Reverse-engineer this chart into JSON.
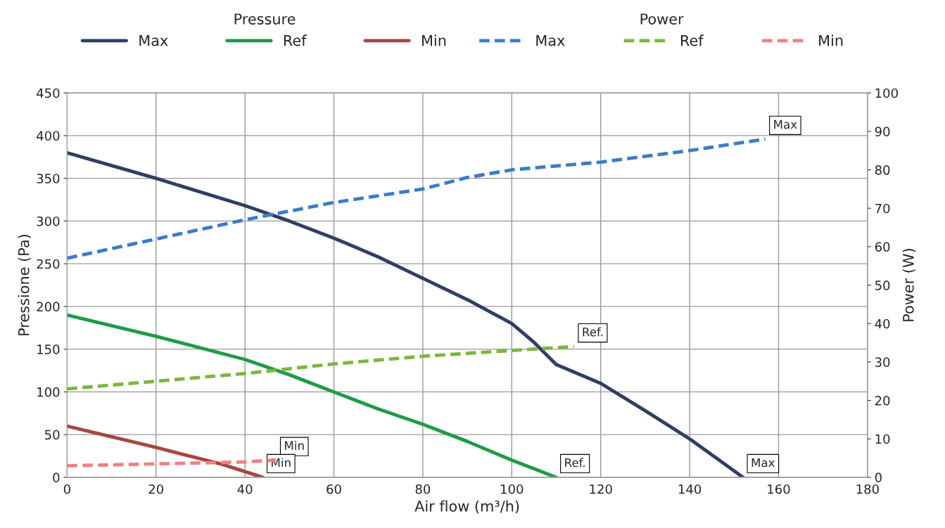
{
  "chart_data": {
    "type": "line",
    "xlabel": "Air flow (m³/h)",
    "ylabel": "Pressione (Pa)",
    "y2label": "Power (W)",
    "legend_title": [
      "Pressure",
      "Power"
    ],
    "legend": "top",
    "grid": true,
    "marker": "none",
    "xlim": [
      0,
      180
    ],
    "xticks": [
      0,
      20,
      40,
      60,
      80,
      100,
      120,
      140,
      160,
      180
    ],
    "ylim": [
      0,
      450
    ],
    "yticks": [
      0,
      50,
      100,
      150,
      200,
      250,
      300,
      350,
      400,
      450
    ],
    "y2lim": [
      0,
      100
    ],
    "y2ticks": [
      0,
      10,
      20,
      30,
      40,
      50,
      60,
      70,
      80,
      90,
      100
    ],
    "series": [
      {
        "name": "Max",
        "color": "#2e3f63",
        "line_style": "solid",
        "x": [
          0,
          20,
          40,
          50,
          60,
          70,
          80,
          90,
          100,
          105,
          110,
          120,
          130,
          140,
          152
        ],
        "values": [
          380,
          350,
          318,
          300,
          280,
          258,
          233,
          208,
          180,
          158,
          132,
          110,
          78,
          45,
          0
        ]
      },
      {
        "name": "Ref",
        "color": "#1f9a48",
        "line_style": "solid",
        "x": [
          0,
          20,
          40,
          50,
          60,
          70,
          80,
          90,
          100,
          110
        ],
        "values": [
          190,
          165,
          138,
          120,
          100,
          80,
          62,
          42,
          20,
          0
        ]
      },
      {
        "name": "Min",
        "color": "#a94442",
        "line_style": "solid",
        "x": [
          0,
          20,
          35,
          44
        ],
        "values": [
          60,
          35,
          15,
          0
        ]
      },
      {
        "name": "Max",
        "color": "#3a7dc9",
        "line_style": "dashed",
        "axis": "y2",
        "x": [
          0,
          20,
          40,
          60,
          80,
          90,
          100,
          120,
          140,
          157
        ],
        "values": [
          57,
          62,
          67,
          71.5,
          75,
          78,
          80,
          82,
          85,
          88
        ]
      },
      {
        "name": "Ref",
        "color": "#7ab83a",
        "line_style": "dashed",
        "axis": "y2",
        "x": [
          0,
          20,
          40,
          60,
          80,
          100,
          114
        ],
        "values": [
          23,
          25,
          27,
          29.5,
          31.5,
          33,
          34
        ]
      },
      {
        "name": "Min",
        "color": "#f08080",
        "line_style": "dashed",
        "axis": "y2",
        "x": [
          0,
          20,
          40,
          47
        ],
        "values": [
          3,
          3.5,
          4,
          4.5
        ]
      }
    ],
    "annotations": [
      {
        "text": "Max",
        "x": 157,
        "y": 396
      },
      {
        "text": "Ref.",
        "x": 114,
        "y": 153
      },
      {
        "text": "Min",
        "x": 47,
        "y": 20
      },
      {
        "text": "Min",
        "x": 44,
        "y": 0
      },
      {
        "text": "Ref.",
        "x": 110,
        "y": 0
      },
      {
        "text": "Max",
        "x": 152,
        "y": 0
      }
    ]
  }
}
